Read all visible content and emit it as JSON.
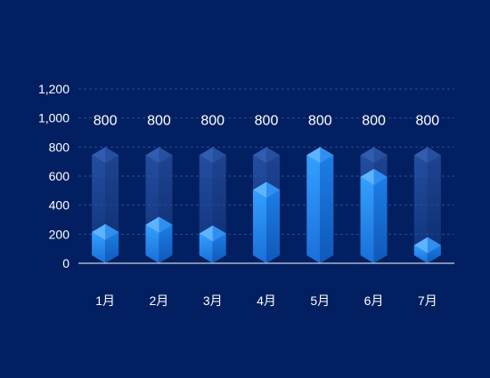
{
  "chart_data": {
    "type": "bar",
    "categories": [
      "1月",
      "2月",
      "3月",
      "4月",
      "5月",
      "6月",
      "7月"
    ],
    "series": [
      {
        "values": [
          270,
          320,
          260,
          560,
          800,
          650,
          180
        ]
      }
    ],
    "background_values": [
      800,
      800,
      800,
      800,
      800,
      800,
      800
    ],
    "background_labels": [
      "800",
      "800",
      "800",
      "800",
      "800",
      "800",
      "800"
    ],
    "ylim": [
      0,
      1200
    ],
    "y_ticks": [
      0,
      200,
      400,
      600,
      800,
      1000,
      1200
    ],
    "y_tick_labels": [
      "0",
      "200",
      "400",
      "600",
      "800",
      "1,000",
      "1,200"
    ],
    "grid": true,
    "colors": {
      "background": "#022061",
      "text": "#ffffff",
      "gridline": "#2a4a9a",
      "axis": "#ffffff",
      "bar_front": "#2a8cf0",
      "bar_side": "#1466c8",
      "bar_top": "#4aa6ff",
      "ghost": "#2c56a8"
    }
  }
}
